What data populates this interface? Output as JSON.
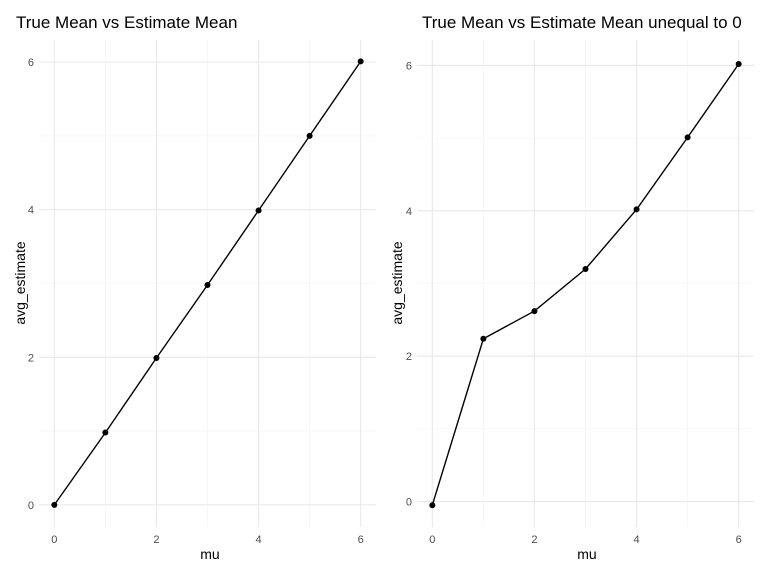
{
  "chart_data": [
    {
      "type": "line",
      "title": "True Mean vs Estimate Mean",
      "xlabel": "mu",
      "ylabel": "avg_estimate",
      "xlim": [
        -0.3,
        6.3
      ],
      "ylim": [
        -0.3,
        6.3
      ],
      "xticks": [
        "0",
        "2",
        "4",
        "6"
      ],
      "yticks": [
        "0",
        "2",
        "4",
        "6"
      ],
      "grid": true,
      "x": [
        0,
        1,
        2,
        3,
        4,
        5,
        6
      ],
      "series": [
        {
          "values": [
            0.0,
            0.98,
            1.99,
            2.98,
            3.99,
            5.0,
            6.01
          ]
        }
      ]
    },
    {
      "type": "line",
      "title": "True Mean vs Estimate Mean unequal to 0",
      "xlabel": "mu",
      "ylabel": "avg_estimate",
      "xlim": [
        -0.3,
        6.3
      ],
      "ylim": [
        -0.35,
        6.35
      ],
      "xticks": [
        "0",
        "2",
        "4",
        "6"
      ],
      "yticks": [
        "0",
        "2",
        "4",
        "6"
      ],
      "grid": true,
      "x": [
        0,
        1,
        2,
        3,
        4,
        5,
        6
      ],
      "series": [
        {
          "values": [
            -0.05,
            2.24,
            2.62,
            3.2,
            4.02,
            5.01,
            6.02
          ]
        }
      ]
    }
  ]
}
